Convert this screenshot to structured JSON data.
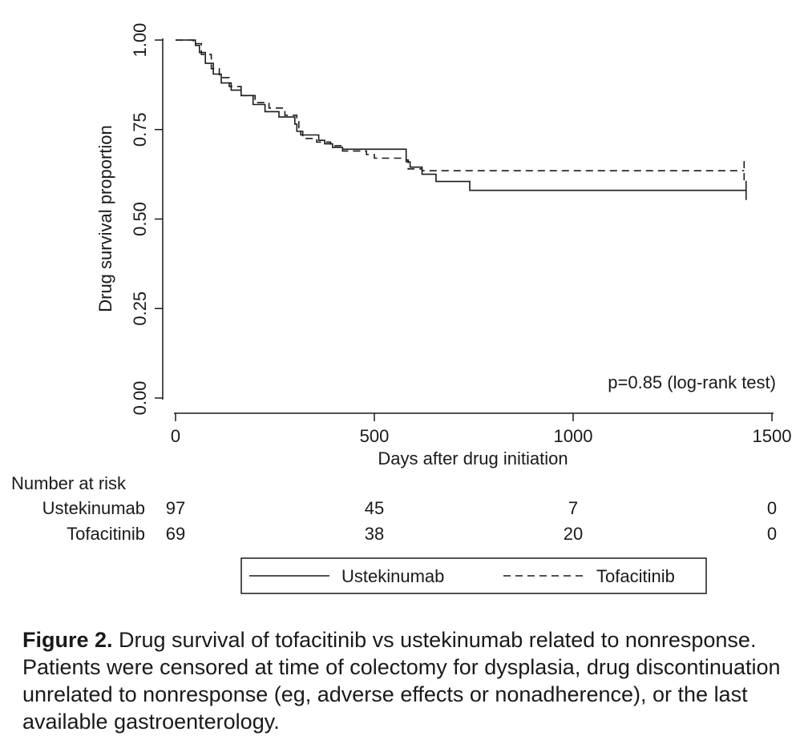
{
  "chart_data": {
    "type": "line",
    "title": "",
    "xlabel": "Days after drug initiation",
    "ylabel": "Drug survival proportion",
    "xlim": [
      0,
      1500
    ],
    "ylim": [
      0,
      1
    ],
    "x_ticks": [
      "0",
      "500",
      "1000",
      "1500"
    ],
    "y_ticks": [
      "0.00",
      "0.25",
      "0.50",
      "0.75",
      "1.00"
    ],
    "annotation": "p=0.85 (log-rank test)",
    "legend_position": "bottom",
    "grid": false,
    "series": [
      {
        "name": "Ustekinumab",
        "line_style": "solid",
        "points": [
          [
            0,
            1.0
          ],
          [
            45,
            1.0
          ],
          [
            50,
            0.985
          ],
          [
            60,
            0.965
          ],
          [
            75,
            0.935
          ],
          [
            95,
            0.905
          ],
          [
            115,
            0.88
          ],
          [
            140,
            0.86
          ],
          [
            165,
            0.845
          ],
          [
            195,
            0.82
          ],
          [
            225,
            0.8
          ],
          [
            260,
            0.785
          ],
          [
            300,
            0.765
          ],
          [
            305,
            0.745
          ],
          [
            315,
            0.735
          ],
          [
            360,
            0.72
          ],
          [
            375,
            0.71
          ],
          [
            395,
            0.7
          ],
          [
            420,
            0.695
          ],
          [
            575,
            0.695
          ],
          [
            580,
            0.66
          ],
          [
            590,
            0.645
          ],
          [
            620,
            0.625
          ],
          [
            655,
            0.605
          ],
          [
            735,
            0.605
          ],
          [
            740,
            0.58
          ],
          [
            1435,
            0.58
          ]
        ]
      },
      {
        "name": "Tofacitinib",
        "line_style": "dashed",
        "points": [
          [
            0,
            1.0
          ],
          [
            30,
            1.0
          ],
          [
            45,
            0.99
          ],
          [
            65,
            0.96
          ],
          [
            90,
            0.92
          ],
          [
            110,
            0.895
          ],
          [
            135,
            0.87
          ],
          [
            165,
            0.845
          ],
          [
            200,
            0.825
          ],
          [
            235,
            0.81
          ],
          [
            275,
            0.79
          ],
          [
            305,
            0.78
          ],
          [
            310,
            0.745
          ],
          [
            320,
            0.725
          ],
          [
            355,
            0.715
          ],
          [
            390,
            0.705
          ],
          [
            420,
            0.69
          ],
          [
            480,
            0.68
          ],
          [
            500,
            0.67
          ],
          [
            580,
            0.665
          ],
          [
            585,
            0.64
          ],
          [
            620,
            0.635
          ],
          [
            1430,
            0.635
          ]
        ]
      }
    ],
    "number_at_risk": {
      "title": "Number at risk",
      "columns": [
        0,
        500,
        1000,
        1500
      ],
      "rows": [
        {
          "label": "Ustekinumab",
          "values": [
            "97",
            "45",
            "7",
            "0"
          ]
        },
        {
          "label": "Tofacitinib",
          "values": [
            "69",
            "38",
            "20",
            "0"
          ]
        }
      ]
    },
    "legend": [
      {
        "label": "Ustekinumab",
        "line_style": "solid"
      },
      {
        "label": "Tofacitinib",
        "line_style": "dashed"
      }
    ]
  },
  "caption": {
    "label": "Figure 2.",
    "text": " Drug survival of tofacitinib vs ustekinumab related to nonresponse. Patients were censored at time of colectomy for dysplasia, drug discontinuation unrelated to nonresponse (eg, adverse effects or nonadherence), or the last available gastroenterology."
  }
}
